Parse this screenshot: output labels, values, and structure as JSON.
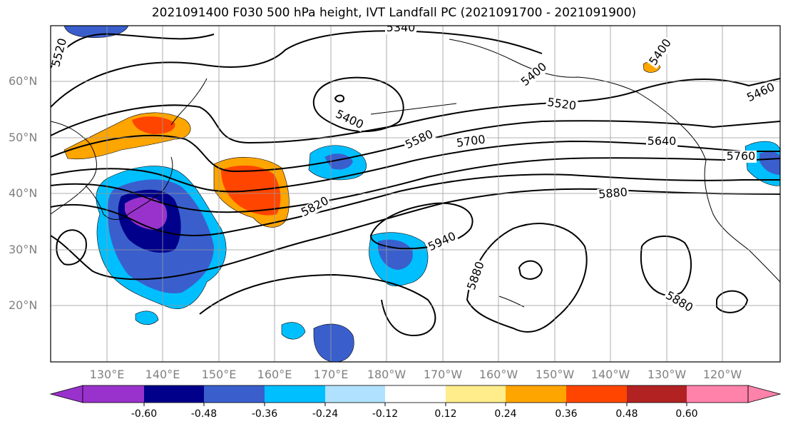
{
  "title": "2021091400 F030 500 hPa height, IVT Landfall PC (2021091700 - 2021091900)",
  "lat_labels": [
    "60°N",
    "50°N",
    "40°N",
    "30°N",
    "20°N"
  ],
  "lon_labels": [
    "130°E",
    "140°E",
    "150°E",
    "160°E",
    "170°E",
    "180°W",
    "170°W",
    "160°W",
    "150°W",
    "140°W",
    "130°W",
    "120°W"
  ],
  "contour_labels": [
    "5520",
    "5340",
    "5400",
    "5400",
    "5400",
    "5520",
    "5460",
    "5580",
    "5700",
    "5640",
    "5760",
    "5820",
    "5880",
    "5940",
    "5880",
    "5880"
  ],
  "colorbar": {
    "tick_labels": [
      "-0.60",
      "-0.48",
      "-0.36",
      "-0.24",
      "-0.12",
      "0.12",
      "0.24",
      "0.36",
      "0.48",
      "0.60"
    ],
    "colors": [
      "#9932cc",
      "#00008b",
      "#3a5fcd",
      "#00bfff",
      "#b0e2ff",
      "#ffffff",
      "#ffec8b",
      "#ffa500",
      "#ff4500",
      "#b22222",
      "#ff82ab"
    ]
  }
}
